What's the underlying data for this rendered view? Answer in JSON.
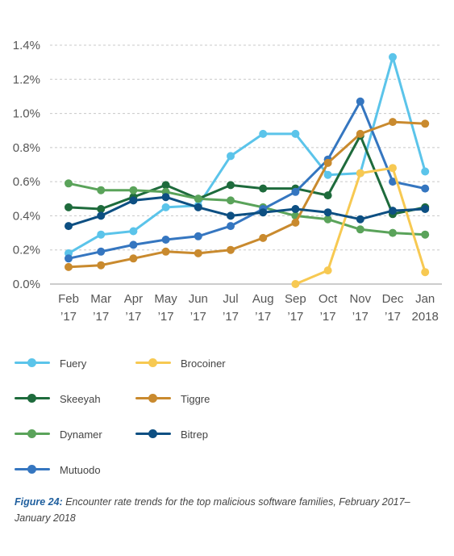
{
  "chart_data": {
    "type": "line",
    "categories": [
      "Feb '17",
      "Mar '17",
      "Apr '17",
      "May '17",
      "Jun '17",
      "Jul '17",
      "Aug '17",
      "Sep '17",
      "Oct '17",
      "Nov '17",
      "Dec '17",
      "Jan 2018"
    ],
    "x_labels": [
      {
        "month": "Feb",
        "year": "’17"
      },
      {
        "month": "Mar",
        "year": "’17"
      },
      {
        "month": "Apr",
        "year": "’17"
      },
      {
        "month": "May",
        "year": "’17"
      },
      {
        "month": "Jun",
        "year": "’17"
      },
      {
        "month": "Jul",
        "year": "’17"
      },
      {
        "month": "Aug",
        "year": "’17"
      },
      {
        "month": "Sep",
        "year": "’17"
      },
      {
        "month": "Oct",
        "year": "’17"
      },
      {
        "month": "Nov",
        "year": "’17"
      },
      {
        "month": "Dec",
        "year": "’17"
      },
      {
        "month": "Jan",
        "year": "2018"
      }
    ],
    "y_ticks": [
      "0.0%",
      "0.2%",
      "0.4%",
      "0.6%",
      "0.8%",
      "1.0%",
      "1.2%",
      "1.4%"
    ],
    "ylim": [
      0,
      1.4
    ],
    "grid": "horizontal dashed",
    "legend_position": "bottom",
    "series": [
      {
        "name": "Fuery",
        "color": "#5bc4ea",
        "values": [
          0.18,
          0.29,
          0.31,
          0.45,
          0.46,
          0.75,
          0.88,
          0.88,
          0.64,
          0.65,
          1.33,
          0.66
        ]
      },
      {
        "name": "Skeeyah",
        "color": "#1e6b3c",
        "values": [
          0.45,
          0.44,
          0.51,
          0.58,
          0.5,
          0.58,
          0.56,
          0.56,
          0.52,
          0.87,
          0.41,
          0.45
        ]
      },
      {
        "name": "Dynamer",
        "color": "#5aa35a",
        "values": [
          0.59,
          0.55,
          0.55,
          0.54,
          0.5,
          0.49,
          0.45,
          0.4,
          0.38,
          0.32,
          0.3,
          0.29
        ]
      },
      {
        "name": "Mutuodo",
        "color": "#3576c0",
        "values": [
          0.15,
          0.19,
          0.23,
          0.26,
          0.28,
          0.34,
          0.44,
          0.54,
          0.73,
          1.07,
          0.6,
          0.56
        ]
      },
      {
        "name": "Brocoiner",
        "color": "#f7c952",
        "values": [
          null,
          null,
          null,
          null,
          null,
          null,
          null,
          0.0,
          0.08,
          0.65,
          0.68,
          0.07
        ]
      },
      {
        "name": "Tiggre",
        "color": "#c98a2e",
        "values": [
          0.1,
          0.11,
          0.15,
          0.19,
          0.18,
          0.2,
          0.27,
          0.36,
          0.71,
          0.88,
          0.95,
          0.94
        ]
      },
      {
        "name": "Bitrep",
        "color": "#0d4f82",
        "values": [
          0.34,
          0.4,
          0.49,
          0.51,
          0.45,
          0.4,
          0.42,
          0.44,
          0.42,
          0.38,
          0.43,
          0.44
        ]
      }
    ]
  },
  "legend": {
    "fuery": "Fuery",
    "skeeyah": "Skeeyah",
    "dynamer": "Dynamer",
    "mutuodo": "Mutuodo",
    "brocoiner": "Brocoiner",
    "tiggre": "Tiggre",
    "bitrep": "Bitrep"
  },
  "caption": {
    "label": "Figure 24:",
    "text": " Encounter rate trends for the top malicious software families, February 2017–January 2018"
  }
}
